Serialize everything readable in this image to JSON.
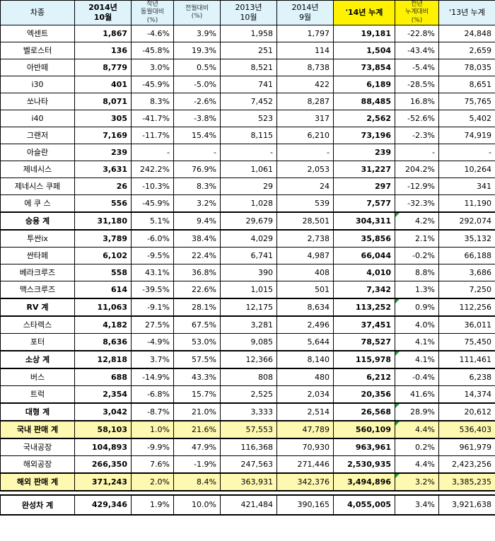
{
  "headers": {
    "model": "차종",
    "oct14_line1": "2014년",
    "oct14_line2": "10월",
    "yoy_line1": "작년",
    "yoy_line2": "동월대비",
    "yoy_line3": "(%)",
    "mom_line1": "전월대비",
    "mom_line2": "(%)",
    "oct13_line1": "2013년",
    "oct13_line2": "10월",
    "sep14_line1": "2014년",
    "sep14_line2": "9월",
    "cum14": "'14년 누계",
    "cumyoy_line1": "전년",
    "cumyoy_line2": "누계대비",
    "cumyoy_line3": "(%)",
    "cum13": "'13년 누계"
  },
  "rows": [
    {
      "name": "엑센트",
      "oct14": "1,867",
      "yoy": "-4.6%",
      "mom": "3.9%",
      "oct13": "1,958",
      "sep14": "1,797",
      "cum14": "19,181",
      "cumyoy": "-22.8%",
      "cum13": "24,848"
    },
    {
      "name": "벨로스터",
      "oct14": "136",
      "yoy": "-45.8%",
      "mom": "19.3%",
      "oct13": "251",
      "sep14": "114",
      "cum14": "1,504",
      "cumyoy": "-43.4%",
      "cum13": "2,659"
    },
    {
      "name": "아반떼",
      "oct14": "8,779",
      "yoy": "3.0%",
      "mom": "0.5%",
      "oct13": "8,521",
      "sep14": "8,738",
      "cum14": "73,854",
      "cumyoy": "-5.4%",
      "cum13": "78,035"
    },
    {
      "name": "i30",
      "oct14": "401",
      "yoy": "-45.9%",
      "mom": "-5.0%",
      "oct13": "741",
      "sep14": "422",
      "cum14": "6,189",
      "cumyoy": "-28.5%",
      "cum13": "8,651"
    },
    {
      "name": "쏘나타",
      "oct14": "8,071",
      "yoy": "8.3%",
      "mom": "-2.6%",
      "oct13": "7,452",
      "sep14": "8,287",
      "cum14": "88,485",
      "cumyoy": "16.8%",
      "cum13": "75,765"
    },
    {
      "name": "i40",
      "oct14": "305",
      "yoy": "-41.7%",
      "mom": "-3.8%",
      "oct13": "523",
      "sep14": "317",
      "cum14": "2,562",
      "cumyoy": "-52.6%",
      "cum13": "5,402"
    },
    {
      "name": "그랜저",
      "oct14": "7,169",
      "yoy": "-11.7%",
      "mom": "15.4%",
      "oct13": "8,115",
      "sep14": "6,210",
      "cum14": "73,196",
      "cumyoy": "-2.3%",
      "cum13": "74,919"
    },
    {
      "name": "아슬란",
      "oct14": "239",
      "yoy": "-",
      "mom": "-",
      "oct13": "-",
      "sep14": "-",
      "cum14": "239",
      "cumyoy": "-",
      "cum13": "-"
    },
    {
      "name": "제네시스",
      "oct14": "3,631",
      "yoy": "242.2%",
      "mom": "76.9%",
      "oct13": "1,061",
      "sep14": "2,053",
      "cum14": "31,227",
      "cumyoy": "204.2%",
      "cum13": "10,264"
    },
    {
      "name": "제네시스 쿠페",
      "oct14": "26",
      "yoy": "-10.3%",
      "mom": "8.3%",
      "oct13": "29",
      "sep14": "24",
      "cum14": "297",
      "cumyoy": "-12.9%",
      "cum13": "341"
    },
    {
      "name": "에 쿠 스",
      "oct14": "556",
      "yoy": "-45.9%",
      "mom": "3.2%",
      "oct13": "1,028",
      "sep14": "539",
      "cum14": "7,577",
      "cumyoy": "-32.3%",
      "cum13": "11,190"
    },
    {
      "name": "승용 계",
      "oct14": "31,180",
      "yoy": "5.1%",
      "mom": "9.4%",
      "oct13": "29,679",
      "sep14": "28,501",
      "cum14": "304,311",
      "cumyoy": "4.2%",
      "cum13": "292,074"
    },
    {
      "name": "투싼ix",
      "oct14": "3,789",
      "yoy": "-6.0%",
      "mom": "38.4%",
      "oct13": "4,029",
      "sep14": "2,738",
      "cum14": "35,856",
      "cumyoy": "2.1%",
      "cum13": "35,132"
    },
    {
      "name": "싼타페",
      "oct14": "6,102",
      "yoy": "-9.5%",
      "mom": "22.4%",
      "oct13": "6,741",
      "sep14": "4,987",
      "cum14": "66,044",
      "cumyoy": "-0.2%",
      "cum13": "66,188"
    },
    {
      "name": "베라크루즈",
      "oct14": "558",
      "yoy": "43.1%",
      "mom": "36.8%",
      "oct13": "390",
      "sep14": "408",
      "cum14": "4,010",
      "cumyoy": "8.8%",
      "cum13": "3,686"
    },
    {
      "name": "맥스크루즈",
      "oct14": "614",
      "yoy": "-39.5%",
      "mom": "22.6%",
      "oct13": "1,015",
      "sep14": "501",
      "cum14": "7,342",
      "cumyoy": "1.3%",
      "cum13": "7,250"
    },
    {
      "name": "RV 계",
      "oct14": "11,063",
      "yoy": "-9.1%",
      "mom": "28.1%",
      "oct13": "12,175",
      "sep14": "8,634",
      "cum14": "113,252",
      "cumyoy": "0.9%",
      "cum13": "112,256"
    },
    {
      "name": "스타렉스",
      "oct14": "4,182",
      "yoy": "27.5%",
      "mom": "67.5%",
      "oct13": "3,281",
      "sep14": "2,496",
      "cum14": "37,451",
      "cumyoy": "4.0%",
      "cum13": "36,011"
    },
    {
      "name": "포터",
      "oct14": "8,636",
      "yoy": "-4.9%",
      "mom": "53.0%",
      "oct13": "9,085",
      "sep14": "5,644",
      "cum14": "78,527",
      "cumyoy": "4.1%",
      "cum13": "75,450"
    },
    {
      "name": "소상 계",
      "oct14": "12,818",
      "yoy": "3.7%",
      "mom": "57.5%",
      "oct13": "12,366",
      "sep14": "8,140",
      "cum14": "115,978",
      "cumyoy": "4.1%",
      "cum13": "111,461"
    },
    {
      "name": "버스",
      "oct14": "688",
      "yoy": "-14.9%",
      "mom": "43.3%",
      "oct13": "808",
      "sep14": "480",
      "cum14": "6,212",
      "cumyoy": "-0.4%",
      "cum13": "6,238"
    },
    {
      "name": "트럭",
      "oct14": "2,354",
      "yoy": "-6.8%",
      "mom": "15.7%",
      "oct13": "2,525",
      "sep14": "2,034",
      "cum14": "20,356",
      "cumyoy": "41.6%",
      "cum13": "14,374"
    },
    {
      "name": "대형 계",
      "oct14": "3,042",
      "yoy": "-8.7%",
      "mom": "21.0%",
      "oct13": "3,333",
      "sep14": "2,514",
      "cum14": "26,568",
      "cumyoy": "28.9%",
      "cum13": "20,612"
    },
    {
      "name": "국내 판매 계",
      "oct14": "58,103",
      "yoy": "1.0%",
      "mom": "21.6%",
      "oct13": "57,553",
      "sep14": "47,789",
      "cum14": "560,109",
      "cumyoy": "4.4%",
      "cum13": "536,403"
    },
    {
      "name": "국내공장",
      "oct14": "104,893",
      "yoy": "-9.9%",
      "mom": "47.9%",
      "oct13": "116,368",
      "sep14": "70,930",
      "cum14": "963,961",
      "cumyoy": "0.2%",
      "cum13": "961,979"
    },
    {
      "name": "해외공장",
      "oct14": "266,350",
      "yoy": "7.6%",
      "mom": "-1.9%",
      "oct13": "247,563",
      "sep14": "271,446",
      "cum14": "2,530,935",
      "cumyoy": "4.4%",
      "cum13": "2,423,256"
    },
    {
      "name": "해외 판매 계",
      "oct14": "371,243",
      "yoy": "2.0%",
      "mom": "8.4%",
      "oct13": "363,931",
      "sep14": "342,376",
      "cum14": "3,494,896",
      "cumyoy": "3.2%",
      "cum13": "3,385,235"
    },
    {
      "name": "완성차 계",
      "oct14": "429,346",
      "yoy": "1.9%",
      "mom": "10.0%",
      "oct13": "421,484",
      "sep14": "390,165",
      "cum14": "4,055,005",
      "cumyoy": "3.4%",
      "cum13": "3,921,638"
    }
  ]
}
